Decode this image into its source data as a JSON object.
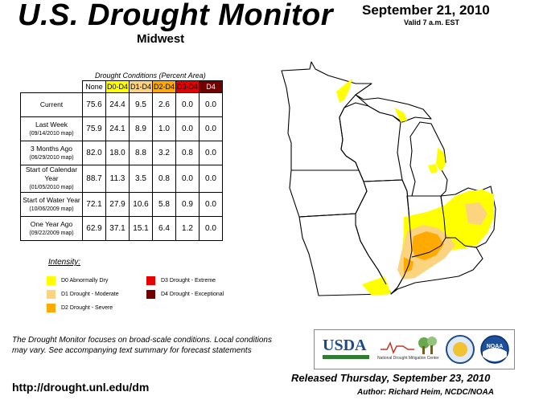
{
  "title": "U.S. Drought Monitor",
  "region": "Midwest",
  "date": "September 21, 2010",
  "valid": "Valid 7 a.m. EST",
  "table": {
    "caption": "Drought Conditions (Percent Area)",
    "headers": [
      "None",
      "D0-D4",
      "D1-D4",
      "D2-D4",
      "D3-D4",
      "D4"
    ],
    "header_colors": [
      "#ffffff",
      "#ffff00",
      "#fcd37f",
      "#ffaa00",
      "#e60000",
      "#730000"
    ],
    "rows": [
      {
        "label": "Current",
        "sub": "",
        "values": [
          "75.6",
          "24.4",
          "9.5",
          "2.6",
          "0.0",
          "0.0"
        ]
      },
      {
        "label": "Last Week",
        "sub": "(09/14/2010 map)",
        "values": [
          "75.9",
          "24.1",
          "8.9",
          "1.0",
          "0.0",
          "0.0"
        ]
      },
      {
        "label": "3 Months Ago",
        "sub": "(06/29/2010 map)",
        "values": [
          "82.0",
          "18.0",
          "8.8",
          "3.2",
          "0.8",
          "0.0"
        ]
      },
      {
        "label": "Start of Calendar Year",
        "sub": "(01/05/2010 map)",
        "values": [
          "88.7",
          "11.3",
          "3.5",
          "0.8",
          "0.0",
          "0.0"
        ]
      },
      {
        "label": "Start of Water Year",
        "sub": "(10/06/2009 map)",
        "values": [
          "72.1",
          "27.9",
          "10.6",
          "5.8",
          "0.9",
          "0.0"
        ]
      },
      {
        "label": "One Year Ago",
        "sub": "(09/22/2009 map)",
        "values": [
          "62.9",
          "37.1",
          "15.1",
          "6.4",
          "1.2",
          "0.0"
        ]
      }
    ]
  },
  "legend": {
    "title": "Intensity:",
    "items": [
      {
        "label": "D0 Abnormally Dry",
        "color": "#ffff00"
      },
      {
        "label": "D1 Drought - Moderate",
        "color": "#fcd37f"
      },
      {
        "label": "D2 Drought - Severe",
        "color": "#ffaa00"
      },
      {
        "label": "D3 Drought - Extreme",
        "color": "#e60000"
      },
      {
        "label": "D4 Drought - Exceptional",
        "color": "#730000"
      }
    ]
  },
  "note": "The Drought Monitor focuses on broad-scale conditions. Local conditions may vary. See accompanying text summary for forecast statements",
  "url": "http://drought.unl.edu/dm",
  "released": "Released Thursday, September 23, 2010",
  "author": "Author: Richard Heim, NCDC/NOAA",
  "logos": {
    "usda": "USDA",
    "ndmc": "National Drought Mitigation Center",
    "noaa": "NOAA"
  },
  "map": {
    "states": [
      "Minnesota",
      "Wisconsin",
      "Michigan",
      "Iowa",
      "Illinois",
      "Indiana",
      "Ohio",
      "Missouri",
      "Kentucky"
    ],
    "colors": {
      "water": "#ffffff",
      "land": "#ffffff",
      "border": "#000000"
    }
  }
}
